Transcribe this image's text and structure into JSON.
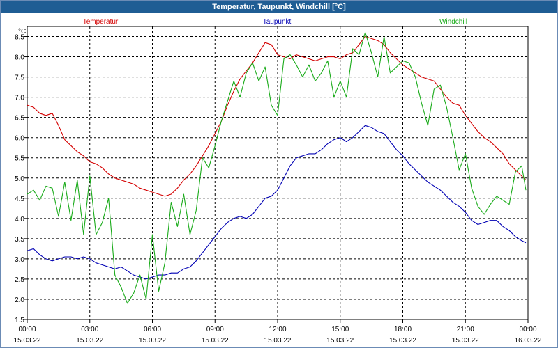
{
  "chart_data": {
    "type": "line",
    "title": "Temperatur, Taupunkt, Windchill [°C]",
    "yunit": "°C",
    "ylim": [
      1.5,
      8.75
    ],
    "yticks": [
      "1.5",
      "2.0",
      "2.5",
      "3.0",
      "3.5",
      "4.0",
      "4.5",
      "5.0",
      "5.5",
      "6.0",
      "6.5",
      "7.0",
      "7.5",
      "8.0",
      "8.5"
    ],
    "xlim": [
      0,
      24
    ],
    "xticks": [
      {
        "x": 0,
        "time": "00:00",
        "date": "15.03.22"
      },
      {
        "x": 3,
        "time": "03:00",
        "date": "15.03.22"
      },
      {
        "x": 6,
        "time": "06:00",
        "date": "15.03.22"
      },
      {
        "x": 9,
        "time": "09:00",
        "date": "15.03.22"
      },
      {
        "x": 12,
        "time": "12:00",
        "date": "15.03.22"
      },
      {
        "x": 15,
        "time": "15:00",
        "date": "15.03.22"
      },
      {
        "x": 18,
        "time": "18:00",
        "date": "15.03.22"
      },
      {
        "x": 21,
        "time": "21:00",
        "date": "15.03.22"
      },
      {
        "x": 24,
        "time": "00:00",
        "date": "16.03.22"
      }
    ],
    "grid": true,
    "legend_placement": "top",
    "series": [
      {
        "name": "Temperatur",
        "color": "#d40000",
        "x": [
          0,
          0.3,
          0.6,
          0.9,
          1.2,
          1.5,
          1.8,
          2.1,
          2.4,
          2.7,
          3.0,
          3.3,
          3.6,
          3.9,
          4.2,
          4.5,
          4.8,
          5.1,
          5.4,
          5.7,
          6.0,
          6.3,
          6.6,
          6.9,
          7.2,
          7.5,
          7.8,
          8.1,
          8.4,
          8.7,
          9.0,
          9.3,
          9.6,
          9.9,
          10.2,
          10.5,
          10.8,
          11.1,
          11.4,
          11.7,
          12.0,
          12.3,
          12.6,
          12.9,
          13.2,
          13.5,
          13.8,
          14.1,
          14.4,
          14.7,
          15.0,
          15.3,
          15.6,
          15.9,
          16.2,
          16.5,
          16.8,
          17.1,
          17.4,
          17.7,
          18.0,
          18.3,
          18.6,
          18.9,
          19.2,
          19.5,
          19.8,
          20.1,
          20.4,
          20.7,
          21.0,
          21.3,
          21.6,
          21.9,
          22.2,
          22.5,
          22.8,
          23.1,
          23.4,
          23.7,
          23.9
        ],
        "values": [
          6.8,
          6.75,
          6.6,
          6.55,
          6.6,
          6.3,
          5.95,
          5.8,
          5.65,
          5.55,
          5.4,
          5.35,
          5.25,
          5.1,
          5.0,
          4.95,
          4.9,
          4.85,
          4.75,
          4.7,
          4.65,
          4.6,
          4.55,
          4.6,
          4.75,
          4.95,
          5.1,
          5.3,
          5.55,
          5.8,
          6.1,
          6.4,
          6.8,
          7.15,
          7.45,
          7.65,
          7.85,
          8.1,
          8.35,
          8.3,
          8.05,
          8.0,
          7.95,
          8.05,
          8.0,
          7.95,
          7.9,
          7.95,
          8.0,
          8.0,
          7.95,
          8.05,
          8.1,
          8.3,
          8.5,
          8.45,
          8.4,
          8.3,
          8.1,
          7.95,
          7.8,
          7.7,
          7.6,
          7.5,
          7.45,
          7.4,
          7.2,
          7.0,
          6.85,
          6.8,
          6.55,
          6.35,
          6.15,
          6.0,
          5.9,
          5.75,
          5.6,
          5.35,
          5.2,
          5.05,
          4.95
        ]
      },
      {
        "name": "Taupunkt",
        "color": "#0000b4",
        "x": [
          0,
          0.3,
          0.6,
          0.9,
          1.2,
          1.5,
          1.8,
          2.1,
          2.4,
          2.7,
          3.0,
          3.3,
          3.6,
          3.9,
          4.2,
          4.5,
          4.8,
          5.1,
          5.4,
          5.7,
          6.0,
          6.3,
          6.6,
          6.9,
          7.2,
          7.5,
          7.8,
          8.1,
          8.4,
          8.7,
          9.0,
          9.3,
          9.6,
          9.9,
          10.2,
          10.5,
          10.8,
          11.1,
          11.4,
          11.7,
          12.0,
          12.3,
          12.6,
          12.9,
          13.2,
          13.5,
          13.8,
          14.1,
          14.4,
          14.7,
          15.0,
          15.3,
          15.6,
          15.9,
          16.2,
          16.5,
          16.8,
          17.1,
          17.4,
          17.7,
          18.0,
          18.3,
          18.6,
          18.9,
          19.2,
          19.5,
          19.8,
          20.1,
          20.4,
          20.7,
          21.0,
          21.3,
          21.6,
          21.9,
          22.2,
          22.5,
          22.8,
          23.1,
          23.4,
          23.7,
          23.9
        ],
        "values": [
          3.2,
          3.25,
          3.1,
          3.0,
          2.95,
          3.0,
          3.05,
          3.05,
          3.0,
          3.05,
          3.0,
          2.9,
          2.85,
          2.8,
          2.75,
          2.8,
          2.7,
          2.6,
          2.55,
          2.5,
          2.55,
          2.6,
          2.6,
          2.65,
          2.65,
          2.75,
          2.8,
          2.95,
          3.15,
          3.35,
          3.55,
          3.75,
          3.9,
          4.0,
          4.05,
          4.0,
          4.1,
          4.3,
          4.5,
          4.55,
          4.7,
          5.0,
          5.3,
          5.5,
          5.55,
          5.6,
          5.6,
          5.7,
          5.85,
          5.95,
          6.0,
          5.9,
          6.0,
          6.15,
          6.3,
          6.25,
          6.15,
          6.1,
          5.9,
          5.7,
          5.55,
          5.35,
          5.2,
          5.05,
          4.9,
          4.8,
          4.7,
          4.55,
          4.4,
          4.3,
          4.15,
          3.95,
          3.85,
          3.9,
          3.95,
          3.95,
          3.8,
          3.7,
          3.55,
          3.45,
          3.4
        ]
      },
      {
        "name": "Windchill",
        "color": "#1aab1a",
        "x": [
          0,
          0.3,
          0.6,
          0.9,
          1.2,
          1.5,
          1.8,
          2.1,
          2.4,
          2.7,
          3.0,
          3.3,
          3.6,
          3.9,
          4.2,
          4.5,
          4.8,
          5.1,
          5.4,
          5.7,
          6.0,
          6.3,
          6.6,
          6.9,
          7.2,
          7.5,
          7.8,
          8.1,
          8.4,
          8.7,
          9.0,
          9.3,
          9.6,
          9.9,
          10.2,
          10.5,
          10.8,
          11.1,
          11.4,
          11.7,
          12.0,
          12.3,
          12.6,
          12.9,
          13.2,
          13.5,
          13.8,
          14.1,
          14.4,
          14.7,
          15.0,
          15.3,
          15.6,
          15.9,
          16.2,
          16.5,
          16.8,
          17.1,
          17.4,
          17.7,
          18.0,
          18.3,
          18.6,
          18.9,
          19.2,
          19.5,
          19.8,
          20.1,
          20.4,
          20.7,
          21.0,
          21.3,
          21.6,
          21.9,
          22.2,
          22.5,
          22.8,
          23.1,
          23.4,
          23.7,
          23.9
        ],
        "values": [
          4.6,
          4.7,
          4.45,
          4.8,
          4.75,
          4.05,
          4.9,
          3.95,
          4.95,
          3.6,
          5.05,
          3.6,
          3.9,
          4.5,
          2.6,
          2.3,
          1.9,
          2.15,
          2.6,
          2.0,
          3.6,
          2.2,
          2.9,
          4.4,
          3.8,
          4.6,
          3.6,
          4.2,
          5.5,
          5.25,
          5.8,
          6.4,
          6.9,
          7.4,
          7.0,
          7.6,
          7.85,
          7.4,
          7.75,
          6.8,
          6.55,
          7.95,
          8.05,
          7.8,
          7.5,
          7.8,
          7.4,
          7.6,
          7.9,
          7.0,
          7.4,
          7.0,
          8.2,
          8.05,
          8.6,
          8.1,
          7.5,
          8.5,
          7.6,
          7.75,
          7.9,
          7.85,
          7.5,
          6.85,
          6.3,
          7.2,
          7.3,
          6.75,
          6.0,
          5.2,
          5.6,
          4.75,
          4.3,
          4.1,
          4.35,
          4.55,
          4.45,
          4.35,
          5.15,
          5.3,
          4.7
        ]
      }
    ]
  }
}
